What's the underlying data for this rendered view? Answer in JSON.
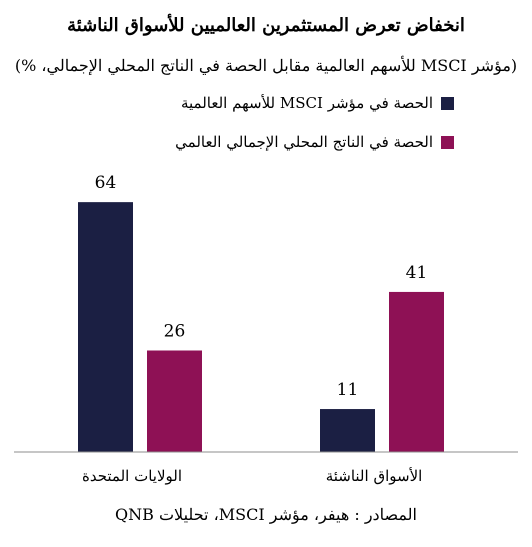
{
  "chart_data": {
    "type": "bar",
    "title": "انخفاض تعرض المستثمرين العالميين للأسواق الناشئة",
    "subtitle": "(مؤشر MSCI للأسهم العالمية مقابل الحصة في الناتج المحلي الإجمالي، %)",
    "categories": [
      "الولايات المتحدة",
      "الأسواق الناشئة"
    ],
    "series": [
      {
        "name": "الحصة في مؤشر MSCI للأسهم العالمية",
        "values": [
          64,
          11
        ],
        "color": "#1b1f43"
      },
      {
        "name": "الحصة في الناتج المحلي الإجمالي العالمي",
        "values": [
          26,
          41
        ],
        "color": "#8e1155"
      }
    ],
    "ylim": [
      0,
      73
    ],
    "grid": false,
    "legend_position": "top-right"
  },
  "source": "المصادر : هيفر، مؤشر MSCI، تحليلات QNB"
}
